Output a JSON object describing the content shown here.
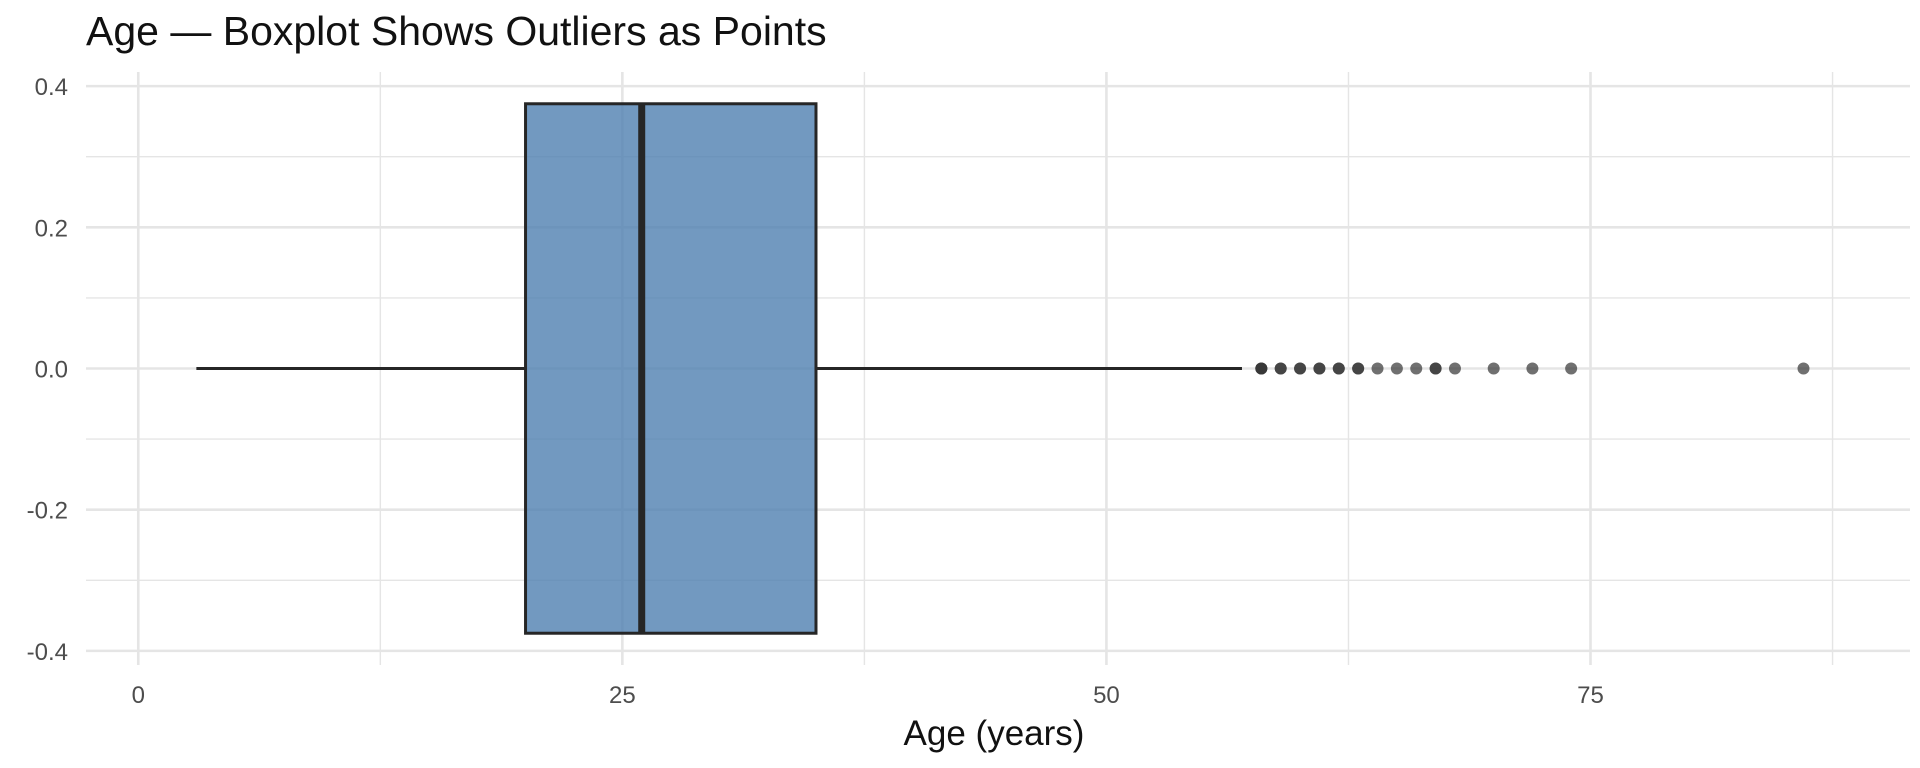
{
  "chart_data": {
    "type": "boxplot",
    "title": "Age — Boxplot Shows Outliers as Points",
    "xlabel": "Age (years)",
    "ylabel": "",
    "xlim": [
      -2.7,
      91.5
    ],
    "ylim": [
      -0.42,
      0.42
    ],
    "x_ticks": [
      0,
      25,
      50,
      75
    ],
    "x_tick_labels": [
      "0",
      "25",
      "50",
      "75"
    ],
    "y_ticks": [
      0.4,
      0.2,
      0.0,
      -0.2,
      -0.4
    ],
    "y_tick_labels": [
      "0.4",
      "0.2",
      "0.0",
      "-0.2",
      "-0.4"
    ],
    "grid": true,
    "orientation": "horizontal",
    "box": {
      "whisker_low": 3,
      "q1": 20,
      "median": 26,
      "q3": 35,
      "whisker_high": 57,
      "y_low": -0.375,
      "y_high": 0.375
    },
    "outliers": [
      58,
      58,
      58,
      59,
      59,
      60,
      60,
      61,
      61,
      62,
      62,
      63,
      63,
      64,
      65,
      66,
      67,
      67,
      68,
      70,
      72,
      74,
      86
    ],
    "colors": {
      "box_fill": "#4f7fb0",
      "box_stroke": "#262626",
      "point": "#333333",
      "grid": "#e5e5e5"
    }
  }
}
